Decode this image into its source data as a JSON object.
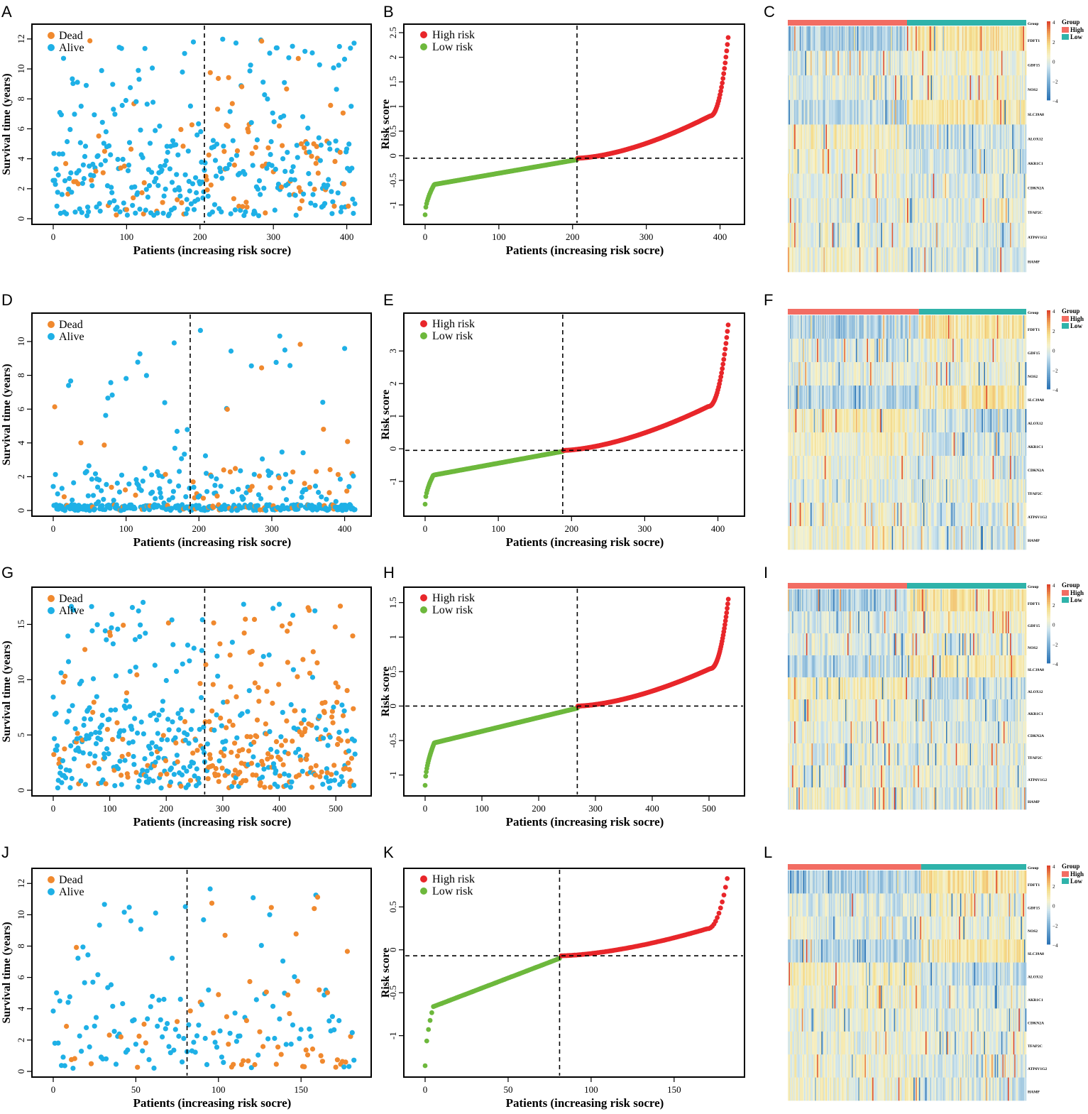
{
  "panels": [
    {
      "letter": "A",
      "type": "scatter",
      "n": 412,
      "cutoff": 206,
      "ymax": 12,
      "deadRatio": 0.18,
      "seed": 11,
      "ylabel": "Survival time (years)",
      "xlabel": "Patients (increasing risk socre)",
      "xticks": [
        0,
        100,
        200,
        300,
        400
      ],
      "yticks": [
        0,
        2,
        4,
        6,
        8,
        10,
        12
      ],
      "legend": [
        "Dead",
        "Alive"
      ]
    },
    {
      "letter": "B",
      "type": "riskline",
      "n": 412,
      "cutoff": 206,
      "ymin": -1.25,
      "ymax": 2.5,
      "thresh": -0.05,
      "minv": -1.2,
      "maxv": 2.4,
      "seed": 21,
      "ylabel": "Risk score",
      "xlabel": "Patients (increasing risk socre)",
      "xticks": [
        0,
        100,
        200,
        300,
        400
      ],
      "yticks": [
        -1.0,
        -0.5,
        0.0,
        0.5,
        1.0,
        1.5,
        2.0,
        2.5
      ],
      "legend": [
        "High risk",
        "Low risk"
      ]
    },
    {
      "letter": "C",
      "type": "heatmap",
      "highFrac": 0.5,
      "seed": 31
    },
    {
      "letter": "D",
      "type": "scatter",
      "n": 415,
      "cutoff": 188,
      "ymax": 10.8,
      "deadRatio": 0.17,
      "seed": 41,
      "lowSurv": true,
      "ylabel": "Survival time (years)",
      "xlabel": "Patients (increasing risk socre)",
      "xticks": [
        0,
        100,
        200,
        300,
        400
      ],
      "yticks": [
        0,
        2,
        4,
        6,
        8,
        10
      ],
      "legend": [
        "Dead",
        "Alive"
      ]
    },
    {
      "letter": "E",
      "type": "riskline",
      "n": 415,
      "cutoff": 188,
      "ymin": -1.85,
      "ymax": 3.9,
      "thresh": -0.05,
      "minv": -1.7,
      "maxv": 3.8,
      "seed": 51,
      "ylabel": "Risk score",
      "xlabel": "Patients (increasing risk socre)",
      "xticks": [
        0,
        100,
        200,
        300,
        400
      ],
      "yticks": [
        -1,
        0,
        1,
        2,
        3
      ],
      "legend": [
        "High risk",
        "Low risk"
      ]
    },
    {
      "letter": "F",
      "type": "heatmap",
      "highFrac": 0.55,
      "seed": 61
    },
    {
      "letter": "G",
      "type": "scatter",
      "n": 535,
      "cutoff": 268,
      "ymax": 17,
      "deadRatio": 0.38,
      "seed": 71,
      "ylabel": "Survival time (years)",
      "xlabel": "Patients (increasing risk socre)",
      "xticks": [
        0,
        100,
        200,
        300,
        400,
        500
      ],
      "yticks": [
        0,
        5,
        10,
        15
      ],
      "legend": [
        "Dead",
        "Alive"
      ]
    },
    {
      "letter": "H",
      "type": "riskline",
      "n": 535,
      "cutoff": 268,
      "ymin": -1.2,
      "ymax": 1.6,
      "thresh": 0.0,
      "minv": -1.15,
      "maxv": 1.55,
      "seed": 81,
      "ylabel": "Risk score",
      "xlabel": "Patients (increasing risk socre)",
      "xticks": [
        0,
        100,
        200,
        300,
        400,
        500
      ],
      "yticks": [
        -1.0,
        -0.5,
        0.0,
        0.5,
        1.0,
        1.5
      ],
      "legend": [
        "High risk",
        "Low risk"
      ]
    },
    {
      "letter": "I",
      "type": "heatmap",
      "highFrac": 0.5,
      "seed": 91
    },
    {
      "letter": "J",
      "type": "scatter",
      "n": 183,
      "cutoff": 81,
      "ymax": 12,
      "deadRatio": 0.25,
      "seed": 101,
      "ylabel": "Survival time (years)",
      "xlabel": "Patients (increasing risk socre)",
      "xticks": [
        0,
        50,
        100,
        150
      ],
      "yticks": [
        0,
        2,
        4,
        6,
        8,
        10,
        12
      ],
      "legend": [
        "Dead",
        "Alive"
      ]
    },
    {
      "letter": "K",
      "type": "riskline",
      "n": 183,
      "cutoff": 81,
      "ymin": -1.4,
      "ymax": 0.85,
      "thresh": -0.07,
      "minv": -1.35,
      "maxv": 0.83,
      "seed": 111,
      "ylabel": "Risk score",
      "xlabel": "Patients (increasing risk socre)",
      "xticks": [
        0,
        50,
        100,
        150
      ],
      "yticks": [
        -1.0,
        -0.5,
        0.0,
        0.5
      ],
      "legend": [
        "High risk",
        "Low risk"
      ]
    },
    {
      "letter": "L",
      "type": "heatmap",
      "highFrac": 0.56,
      "seed": 121
    }
  ],
  "heatmap_legend": {
    "title": "Group",
    "groups": [
      "High",
      "Low"
    ],
    "scale": [
      "4",
      "2",
      "0",
      "−2",
      "−4"
    ],
    "top_label": "Group"
  },
  "genes": [
    "FDFT1",
    "GDF15",
    "NOS2",
    "SLC39A8",
    "ALOX12",
    "AKR1C1",
    "CDKN2A",
    "TFAP2C",
    "ATP6V1G2",
    "HAMP"
  ],
  "colors": {
    "dead": "#f0892e",
    "alive": "#1eb0e6",
    "high": "#e8262a",
    "low": "#6db83c",
    "groupHigh": "#f26d63",
    "groupLow": "#2fb3aa"
  }
}
